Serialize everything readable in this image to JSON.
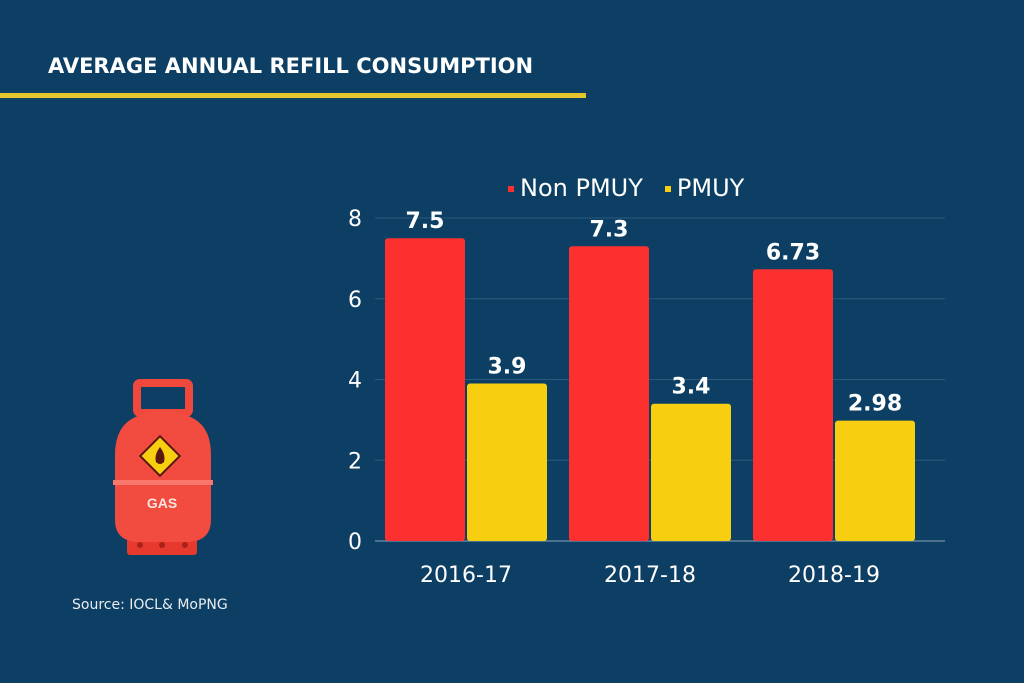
{
  "title": "AVERAGE ANNUAL REFILL CONSUMPTION",
  "source": "Source: IOCL& MoPNG",
  "cylinder_label": "GAS",
  "chart_data": {
    "type": "bar",
    "categories": [
      "2016-17",
      "2017-18",
      "2018-19"
    ],
    "series": [
      {
        "name": "Non PMUY",
        "values": [
          7.5,
          7.3,
          6.73
        ],
        "labels": [
          "7.5",
          "7.3",
          "6.73"
        ],
        "color": "#fd3030"
      },
      {
        "name": "PMUY",
        "values": [
          3.9,
          3.4,
          2.98
        ],
        "labels": [
          "3.9",
          "3.4",
          "2.98"
        ],
        "color": "#f7cf10"
      }
    ],
    "yticks": [
      "0",
      "2",
      "4",
      "6",
      "8"
    ],
    "ylim": [
      0,
      8
    ],
    "grid": true,
    "legend": "top"
  }
}
